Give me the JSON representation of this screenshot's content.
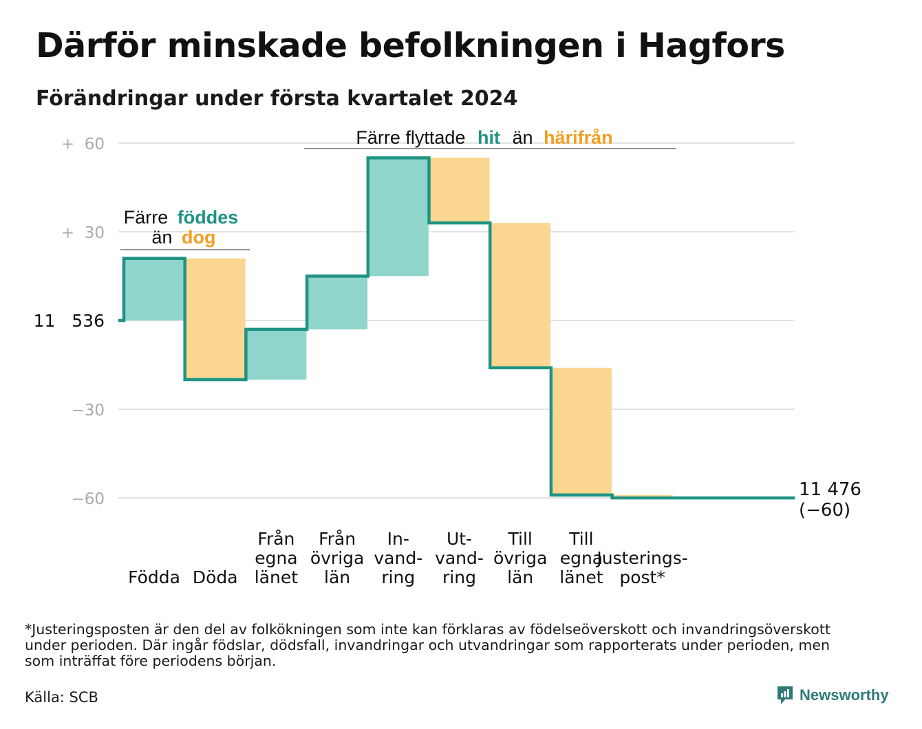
{
  "title": "Därför minskade befolkningen i Hagfors",
  "subtitle": "Förändringar under första kvartalet 2024",
  "annotations": {
    "births_vs_deaths": {
      "line1_prefix": "Färre",
      "line1_highlight": "föddes",
      "line2_prefix": "än",
      "line2_highlight": "dog"
    },
    "moves": {
      "prefix": "Färre flyttade",
      "highlight_in": "hit",
      "middle": "än",
      "highlight_out": "härifrån"
    }
  },
  "start_label": "11 536",
  "end_label": {
    "line1": "11 476",
    "line2": "(−60)"
  },
  "footnote": {
    "line1": "*Justeringsposten är den del av folkökningen som inte kan förklaras av födelseöverskott och invandringsöverskott",
    "line2": "under perioden. Där ingår födslar, dödsfall, invandringar och utvandringar som rapporterats under perioden, men",
    "line3": "som inträffat före periodens början."
  },
  "source": "Källa: SCB",
  "brand": "Newsworthy",
  "colors": {
    "increase": "#8fd5cb",
    "decrease": "#fad690",
    "line": "#1f9384",
    "teal_text": "#1f9384",
    "orange_text": "#f0a020",
    "grid": "#e2e2e2",
    "tick": "#aaaaaa"
  },
  "chart_data": {
    "type": "waterfall",
    "baseline": 11536,
    "end_value": 11476,
    "total_change": -60,
    "ylim": [
      -60,
      60
    ],
    "y_ticks": [
      {
        "value": 60,
        "label": "+  60"
      },
      {
        "value": 30,
        "label": "+  30"
      },
      {
        "value": 0,
        "label": "11   536"
      },
      {
        "value": -30,
        "label": "−30"
      },
      {
        "value": -60,
        "label": "−60"
      }
    ],
    "steps": [
      {
        "label": [
          "Födda"
        ],
        "change": 21
      },
      {
        "label": [
          "Döda"
        ],
        "change": -41
      },
      {
        "label": [
          "Från",
          "egna",
          "länet"
        ],
        "change": 17
      },
      {
        "label": [
          "Från",
          "övriga",
          "län"
        ],
        "change": 18
      },
      {
        "label": [
          "In-",
          "vand-",
          "ring"
        ],
        "change": 40
      },
      {
        "label": [
          "Ut-",
          "vand-",
          "ring"
        ],
        "change": -22
      },
      {
        "label": [
          "Till",
          "övriga",
          "län"
        ],
        "change": -49
      },
      {
        "label": [
          "Till",
          "egna",
          "länet"
        ],
        "change": -43
      },
      {
        "label": [
          "Justerings-",
          "post*"
        ],
        "change": -1
      }
    ]
  }
}
